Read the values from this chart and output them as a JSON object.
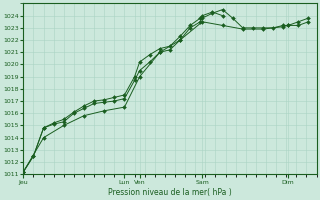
{
  "bg_color": "#cce8dc",
  "grid_color": "#aad4c4",
  "line_color": "#1a5e20",
  "marker_color": "#1a5e20",
  "xlabel_label": "Pression niveau de la mer( hPa )",
  "ylim": [
    1011,
    1025
  ],
  "yticks": [
    1011,
    1012,
    1013,
    1014,
    1015,
    1016,
    1017,
    1018,
    1019,
    1020,
    1021,
    1022,
    1023,
    1024
  ],
  "x_day_labels": [
    "Jeu",
    "Lun",
    "Ven",
    "Sam",
    "Dim"
  ],
  "x_day_positions": [
    0,
    100,
    115,
    177,
    262
  ],
  "xlim": [
    0,
    290
  ],
  "series1": [
    [
      0,
      1011.2
    ],
    [
      10,
      1012.5
    ],
    [
      20,
      1014.8
    ],
    [
      30,
      1015.1
    ],
    [
      40,
      1015.3
    ],
    [
      50,
      1016.0
    ],
    [
      60,
      1016.4
    ],
    [
      70,
      1016.8
    ],
    [
      80,
      1016.9
    ],
    [
      90,
      1017.0
    ],
    [
      100,
      1017.2
    ],
    [
      110,
      1018.7
    ],
    [
      115,
      1019.5
    ],
    [
      125,
      1020.2
    ],
    [
      135,
      1021.0
    ],
    [
      145,
      1021.2
    ],
    [
      155,
      1022.0
    ],
    [
      165,
      1023.0
    ],
    [
      175,
      1023.5
    ],
    [
      177,
      1023.8
    ],
    [
      187,
      1024.2
    ],
    [
      197,
      1024.5
    ],
    [
      207,
      1023.8
    ],
    [
      217,
      1023.0
    ],
    [
      227,
      1023.0
    ],
    [
      237,
      1023.0
    ],
    [
      247,
      1023.0
    ],
    [
      257,
      1023.2
    ],
    [
      262,
      1023.2
    ],
    [
      272,
      1023.5
    ],
    [
      282,
      1023.8
    ]
  ],
  "series2": [
    [
      0,
      1011.2
    ],
    [
      10,
      1012.5
    ],
    [
      20,
      1014.8
    ],
    [
      30,
      1015.2
    ],
    [
      40,
      1015.5
    ],
    [
      50,
      1016.1
    ],
    [
      60,
      1016.6
    ],
    [
      70,
      1017.0
    ],
    [
      80,
      1017.1
    ],
    [
      90,
      1017.3
    ],
    [
      100,
      1017.5
    ],
    [
      110,
      1019.0
    ],
    [
      115,
      1020.2
    ],
    [
      125,
      1020.8
    ],
    [
      135,
      1021.3
    ],
    [
      145,
      1021.5
    ],
    [
      155,
      1022.3
    ],
    [
      165,
      1023.2
    ],
    [
      175,
      1023.8
    ],
    [
      177,
      1024.0
    ],
    [
      187,
      1024.3
    ],
    [
      197,
      1024.0
    ]
  ],
  "series3": [
    [
      0,
      1011.2
    ],
    [
      20,
      1014.0
    ],
    [
      40,
      1015.0
    ],
    [
      60,
      1015.8
    ],
    [
      80,
      1016.2
    ],
    [
      100,
      1016.5
    ],
    [
      115,
      1019.0
    ],
    [
      135,
      1021.0
    ],
    [
      155,
      1022.0
    ],
    [
      177,
      1023.5
    ],
    [
      197,
      1023.2
    ],
    [
      217,
      1022.9
    ],
    [
      237,
      1022.9
    ],
    [
      257,
      1023.1
    ],
    [
      262,
      1023.2
    ],
    [
      272,
      1023.2
    ],
    [
      282,
      1023.5
    ]
  ]
}
